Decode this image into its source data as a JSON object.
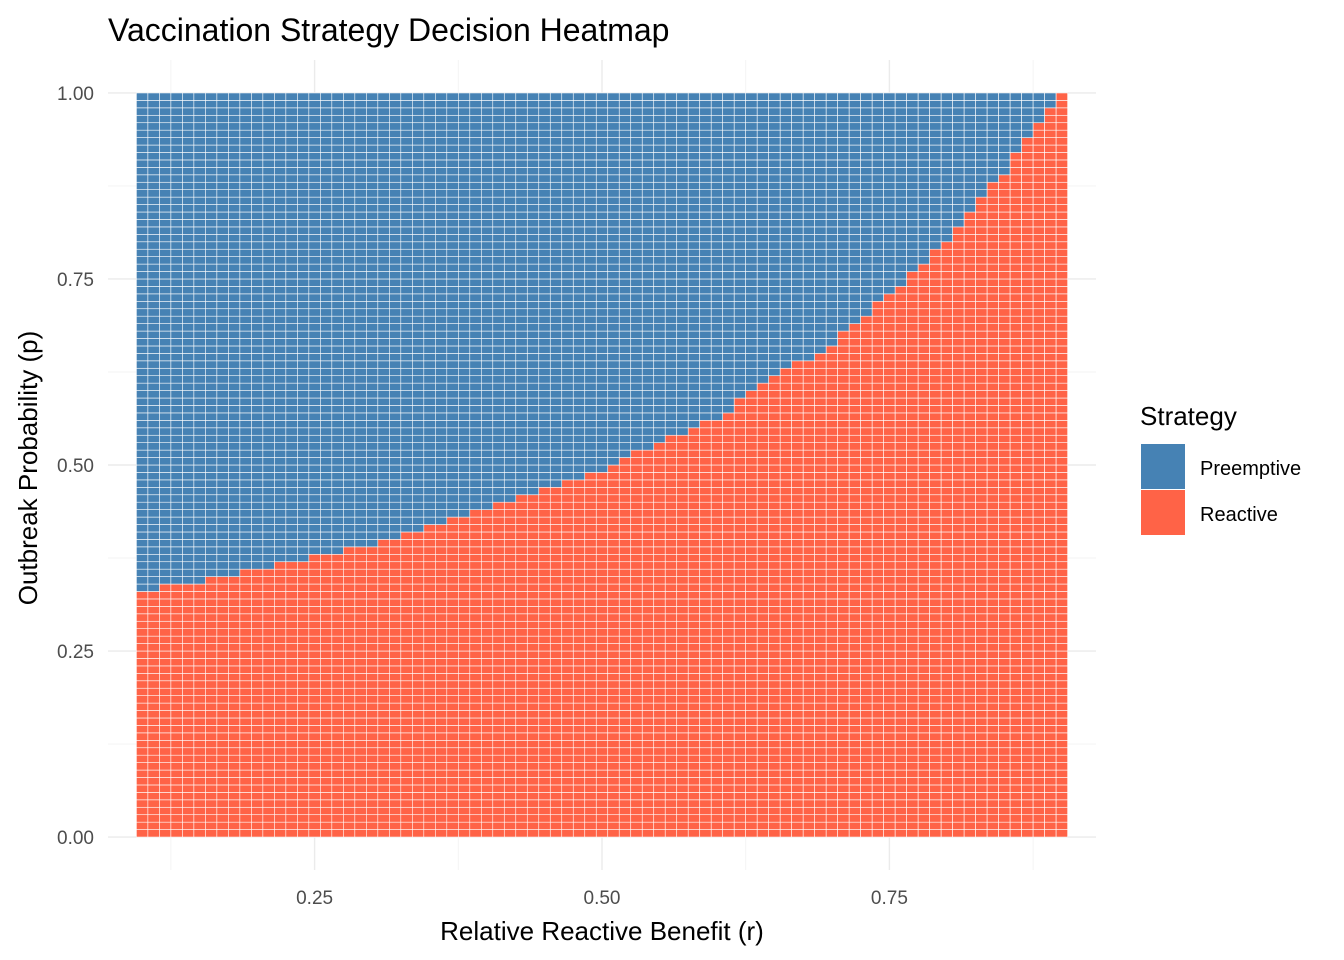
{
  "chart_data": {
    "type": "heatmap",
    "title": "Vaccination Strategy Decision Heatmap",
    "xlabel": "Relative Reactive Benefit (r)",
    "ylabel": "Outbreak Probability (p)",
    "xlim": [
      0.1,
      0.9
    ],
    "ylim": [
      0.0,
      1.0
    ],
    "x_ticks": [
      0.25,
      0.5,
      0.75
    ],
    "x_tick_labels": [
      "0.25",
      "0.50",
      "0.75"
    ],
    "y_ticks": [
      0.0,
      0.25,
      0.5,
      0.75,
      1.0
    ],
    "y_tick_labels": [
      "0.00",
      "0.25",
      "0.50",
      "0.75",
      "1.00"
    ],
    "x_minor_ticks": [
      0.125,
      0.375,
      0.625,
      0.875
    ],
    "y_minor_ticks": [
      0.125,
      0.375,
      0.625,
      0.875
    ],
    "grid": true,
    "grid_x_step": 0.01,
    "grid_y_step": 0.01,
    "legend": {
      "title": "Strategy",
      "placement": "right",
      "entries": [
        {
          "label": "Preemptive",
          "color": "#4682B4"
        },
        {
          "label": "Reactive",
          "color": "#FF6347"
        }
      ]
    },
    "decision_boundary": {
      "description_rule": "cells with p above boundary are Preemptive, below are Reactive",
      "r": [
        0.1,
        0.2,
        0.3,
        0.4,
        0.5,
        0.6,
        0.7,
        0.75,
        0.8,
        0.85,
        0.88,
        0.9
      ],
      "p": [
        0.325,
        0.355,
        0.39,
        0.435,
        0.49,
        0.56,
        0.66,
        0.725,
        0.8,
        0.89,
        0.955,
        1.0
      ]
    }
  }
}
